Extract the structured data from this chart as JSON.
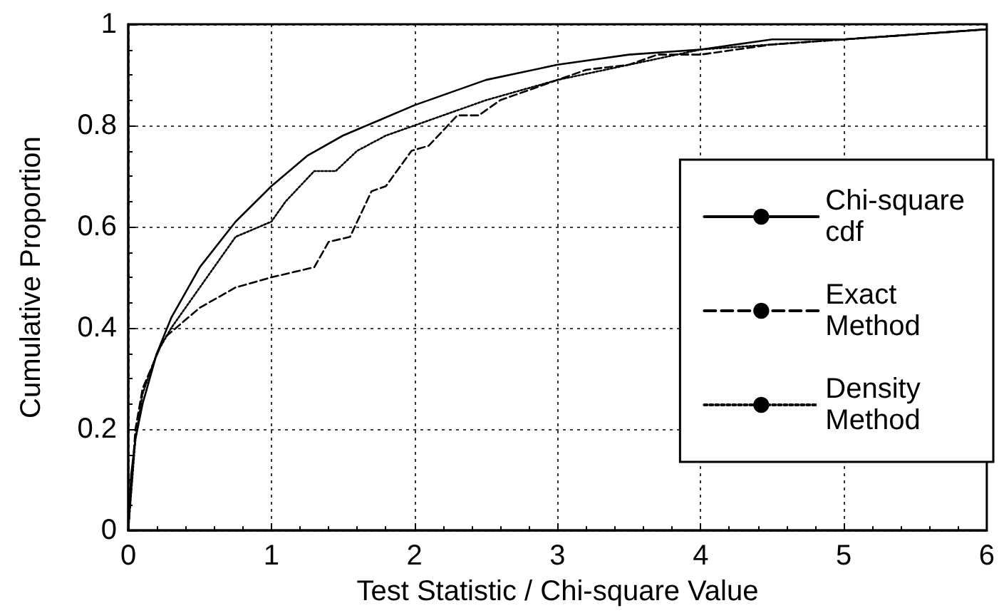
{
  "chart_data": {
    "type": "line",
    "xlabel": "Test Statistic / Chi-square Value",
    "ylabel": "Cumulative Proportion",
    "xlim": [
      0,
      6
    ],
    "xticks": [
      0,
      1,
      2,
      3,
      4,
      5,
      6
    ],
    "ylim": [
      0,
      1
    ],
    "yticks": [
      0,
      0.2,
      0.4,
      0.6,
      0.8,
      1
    ],
    "grid": true,
    "legend": "right",
    "marker": "none",
    "series": [
      {
        "name": "Chi-square\ncdf",
        "color": "#000000",
        "line_style": "solid",
        "x": [
          0,
          0.02,
          0.05,
          0.1,
          0.2,
          0.3,
          0.5,
          0.75,
          1,
          1.25,
          1.5,
          1.75,
          2,
          2.5,
          3,
          3.5,
          4,
          4.5,
          5,
          5.5,
          6
        ],
        "values": [
          0,
          0.11,
          0.18,
          0.25,
          0.35,
          0.42,
          0.52,
          0.61,
          0.68,
          0.74,
          0.78,
          0.81,
          0.84,
          0.89,
          0.92,
          0.94,
          0.95,
          0.97,
          0.97,
          0.98,
          0.99
        ]
      },
      {
        "name": "Exact\nMethod",
        "color": "#000000",
        "line_style": "dashed",
        "x": [
          0,
          0.05,
          0.1,
          0.25,
          0.5,
          0.75,
          1,
          1.3,
          1.4,
          1.55,
          1.7,
          1.8,
          1.98,
          2.1,
          2.2,
          2.3,
          2.45,
          2.6,
          2.8,
          3,
          3.2,
          3.5,
          3.7,
          4,
          4.5,
          5,
          5.5,
          6
        ],
        "values": [
          0,
          0.2,
          0.28,
          0.38,
          0.44,
          0.48,
          0.5,
          0.52,
          0.57,
          0.58,
          0.67,
          0.68,
          0.75,
          0.76,
          0.79,
          0.82,
          0.82,
          0.85,
          0.87,
          0.89,
          0.91,
          0.92,
          0.94,
          0.94,
          0.96,
          0.97,
          0.98,
          0.99
        ]
      },
      {
        "name": "Density\nMethod",
        "color": "#000000",
        "line_style": "dotted",
        "x": [
          0,
          0.05,
          0.1,
          0.2,
          0.3,
          0.5,
          0.6,
          0.75,
          1,
          1.1,
          1.3,
          1.45,
          1.6,
          1.8,
          2,
          2.2,
          2.5,
          3,
          3.5,
          4,
          4.5,
          5,
          5.5,
          6
        ],
        "values": [
          0,
          0.18,
          0.27,
          0.35,
          0.4,
          0.48,
          0.52,
          0.58,
          0.61,
          0.65,
          0.71,
          0.71,
          0.75,
          0.78,
          0.8,
          0.82,
          0.85,
          0.89,
          0.92,
          0.95,
          0.96,
          0.97,
          0.98,
          0.99
        ]
      }
    ]
  }
}
